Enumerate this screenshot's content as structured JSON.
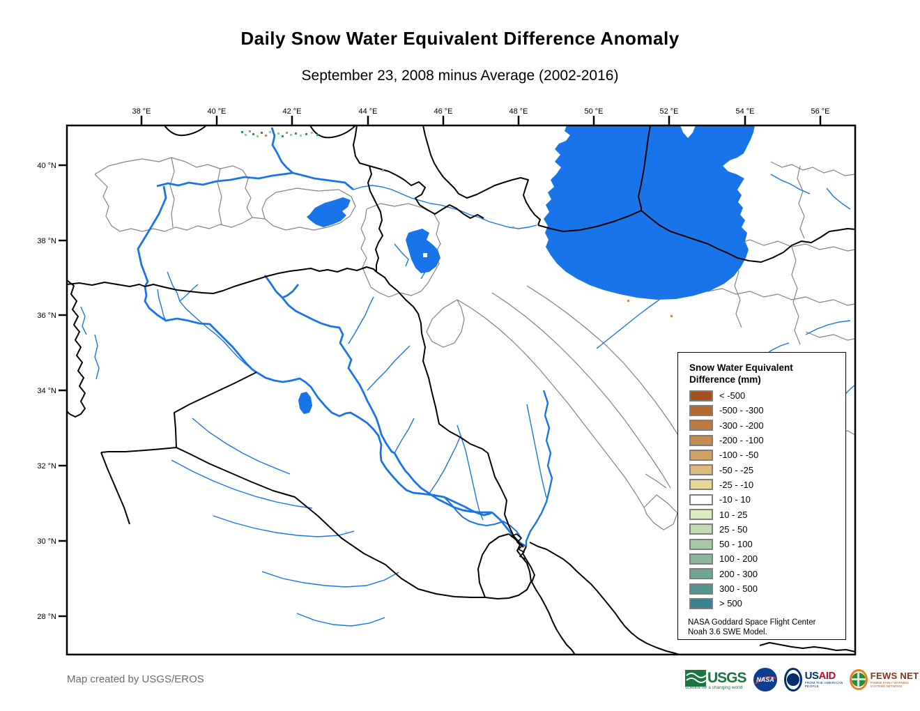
{
  "title": "Daily Snow Water Equivalent Difference Anomaly",
  "subtitle": "September 23, 2008 minus Average (2002-2016)",
  "map": {
    "lon_labels": [
      "38 °E",
      "40 °E",
      "42 °E",
      "44 °E",
      "46 °E",
      "48 °E",
      "50 °E",
      "52 °E",
      "54 °E",
      "56 °E"
    ],
    "lat_labels": [
      "40 °N",
      "38 °N",
      "36 °N",
      "34 °N",
      "32 °N",
      "30 °N",
      "28 °N"
    ]
  },
  "legend": {
    "title_line1": "Snow Water Equivalent",
    "title_line2": "Difference (mm)",
    "entries": [
      {
        "label": "< -500",
        "color": "#A5531E"
      },
      {
        "label": "-500 - -300",
        "color": "#B36930"
      },
      {
        "label": "-300 - -200",
        "color": "#BE7B40"
      },
      {
        "label": "-200 - -100",
        "color": "#C88D52"
      },
      {
        "label": "-100 - -50",
        "color": "#D2A164"
      },
      {
        "label": "-50 - -25",
        "color": "#DEBA7A"
      },
      {
        "label": "-25 - -10",
        "color": "#EBD795"
      },
      {
        "label": "-10 - 10",
        "color": "#FFFFFF"
      },
      {
        "label": "10 - 25",
        "color": "#DDECBB"
      },
      {
        "label": "25 - 50",
        "color": "#C2DCB2"
      },
      {
        "label": "50 - 100",
        "color": "#A6CAA7"
      },
      {
        "label": "100 - 200",
        "color": "#8AB89E"
      },
      {
        "label": "200 - 300",
        "color": "#6FA696"
      },
      {
        "label": "300 - 500",
        "color": "#559490"
      },
      {
        "label": "> 500",
        "color": "#38828F"
      }
    ],
    "source_line1": "NASA Goddard Space Flight Center",
    "source_line2": "Noah 3.6 SWE Model."
  },
  "credit": "Map created by USGS/EROS",
  "logos": {
    "usgs": {
      "name": "USGS",
      "tagline": "science for a changing world",
      "color": "#1A7540"
    },
    "nasa": {
      "name": "NASA",
      "color": "#0B3D91",
      "swoosh": "#E03C31"
    },
    "usaid": {
      "name_us": "US",
      "name_aid": "AID",
      "tagline": "FROM THE AMERICAN PEOPLE",
      "blue": "#002F6C",
      "red": "#BA0C2F"
    },
    "fewsnet": {
      "name": "FEWS NET",
      "tagline": "FAMINE EARLY WARNING SYSTEMS NETWORK",
      "orange": "#E8801A",
      "maroon": "#8A2F1D",
      "globe": "#2E8B3A"
    }
  },
  "colors": {
    "water": "#1874E8",
    "border": "#000000",
    "watershed": "#828282",
    "speckle_teal": "#3A8290",
    "speckle_green": "#9CC79C",
    "speckle_tan": "#C88D52",
    "credit_text": "#6B6B6B"
  }
}
